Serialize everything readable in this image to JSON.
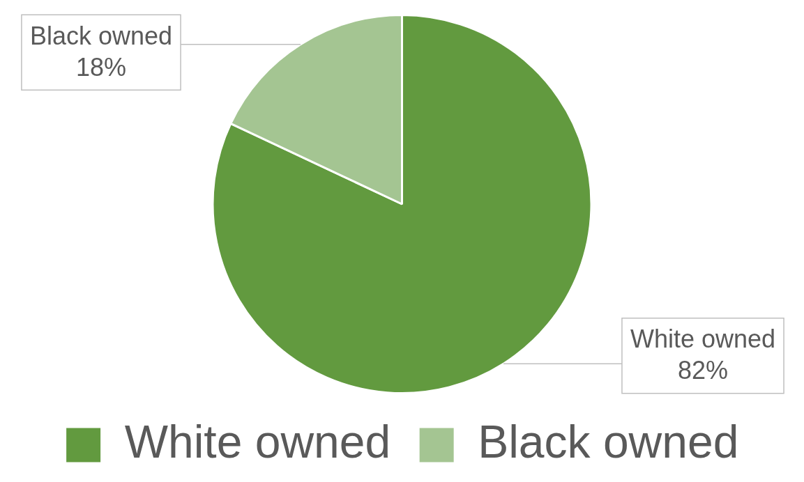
{
  "chart_data": {
    "type": "pie",
    "categories": [
      "White owned",
      "Black owned"
    ],
    "values": [
      82,
      18
    ],
    "colors": [
      "#629a3f",
      "#a4c592"
    ],
    "value_labels": [
      "82%",
      "18%"
    ],
    "legend": "bottom"
  }
}
